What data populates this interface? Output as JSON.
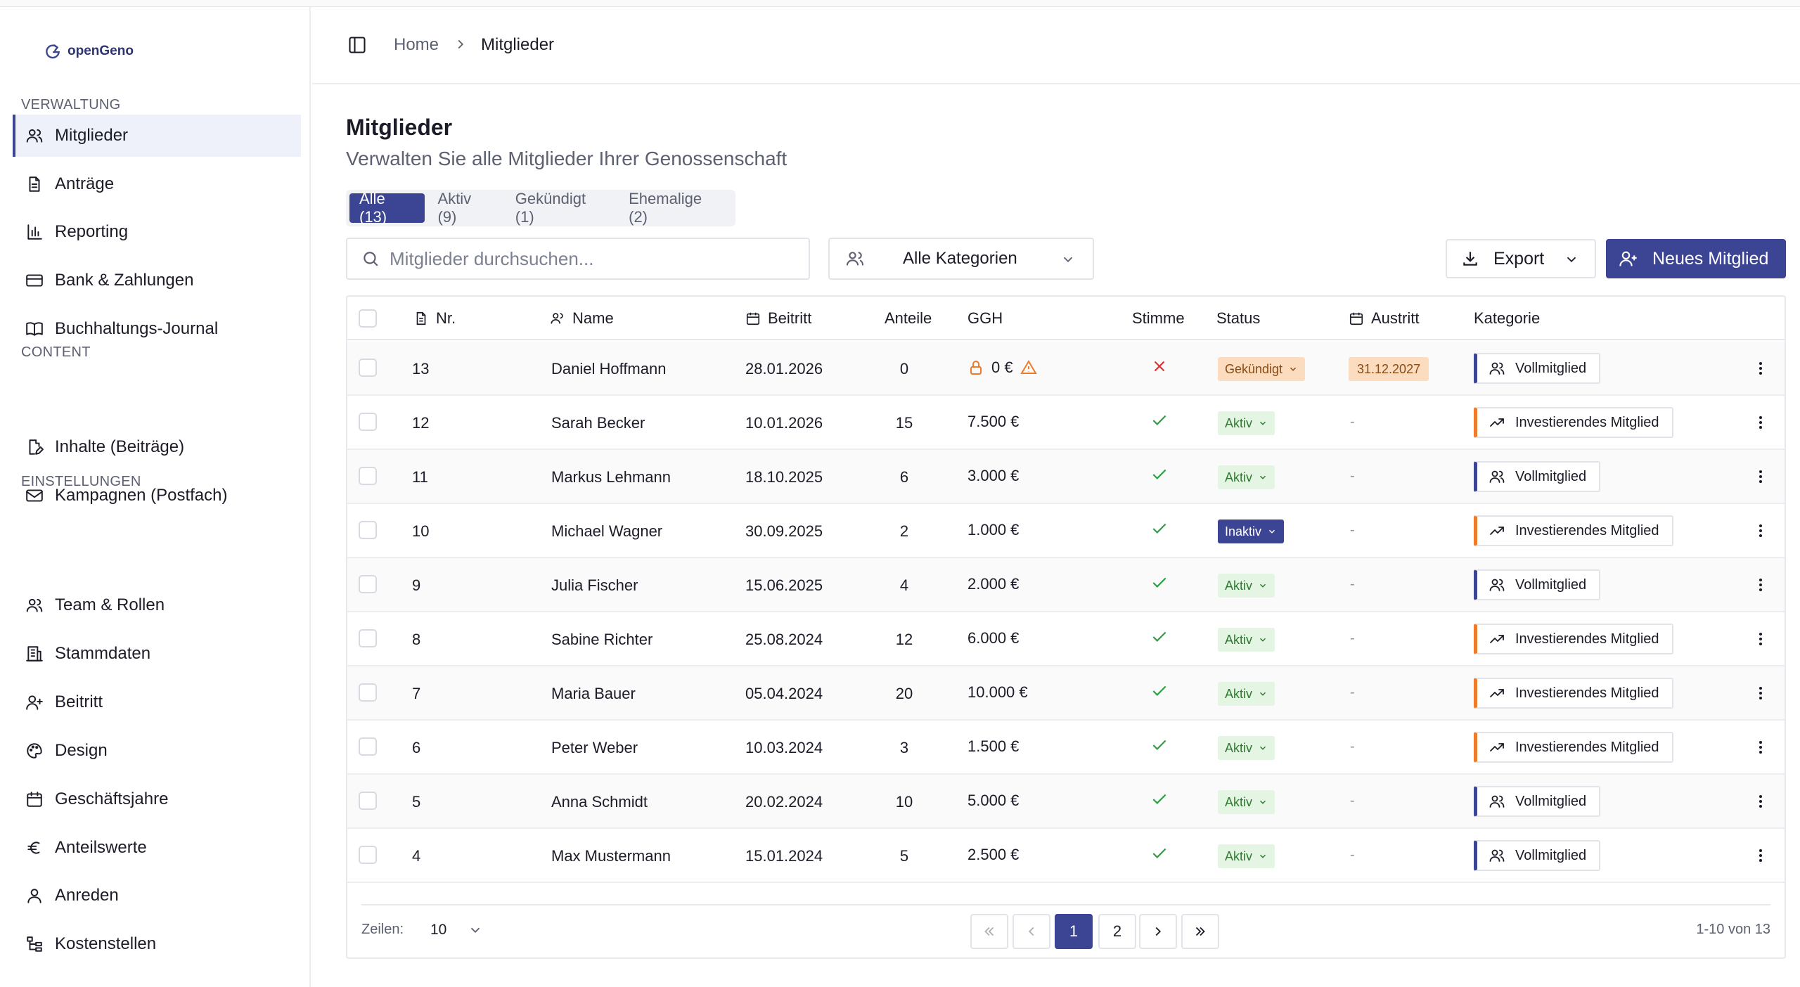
{
  "app": {
    "brand": "openGeno"
  },
  "sidebar": {
    "sections": [
      {
        "title": "VERWALTUNG"
      },
      {
        "title": "CONTENT"
      },
      {
        "title": "EINSTELLUNGEN"
      }
    ],
    "items": [
      {
        "label": "Mitglieder",
        "icon": "users-icon",
        "active": true
      },
      {
        "label": "Anträge",
        "icon": "document-icon"
      },
      {
        "label": "Reporting",
        "icon": "bar-chart-icon"
      },
      {
        "label": "Bank & Zahlungen",
        "icon": "credit-card-icon"
      },
      {
        "label": "Buchhaltungs-Journal",
        "icon": "book-icon"
      },
      {
        "label": "Inhalte (Beiträge)",
        "icon": "file-edit-icon"
      },
      {
        "label": "Kampagnen (Postfach)",
        "icon": "mail-icon"
      },
      {
        "label": "Team & Rollen",
        "icon": "users-icon"
      },
      {
        "label": "Stammdaten",
        "icon": "building-icon"
      },
      {
        "label": "Beitritt",
        "icon": "user-plus-icon"
      },
      {
        "label": "Design",
        "icon": "palette-icon"
      },
      {
        "label": "Geschäftsjahre",
        "icon": "calendar-icon"
      },
      {
        "label": "Anteilswerte",
        "icon": "euro-icon"
      },
      {
        "label": "Anreden",
        "icon": "user-icon"
      },
      {
        "label": "Kostenstellen",
        "icon": "hierarchy-icon"
      }
    ]
  },
  "header": {
    "breadcrumb": {
      "home": "Home",
      "current": "Mitglieder"
    }
  },
  "page": {
    "title": "Mitglieder",
    "subtitle": "Verwalten Sie alle Mitglieder Ihrer Genossenschaft"
  },
  "tabs": [
    {
      "label": "Alle (13)",
      "active": true
    },
    {
      "label": "Aktiv (9)"
    },
    {
      "label": "Gekündigt (1)"
    },
    {
      "label": "Ehemalige (2)"
    }
  ],
  "toolbar": {
    "search_placeholder": "Mitglieder durchsuchen...",
    "category_value": "Alle Kategorien",
    "export_label": "Export",
    "new_label": "Neues Mitglied"
  },
  "table": {
    "headers": {
      "nr": "Nr.",
      "name": "Name",
      "beitritt": "Beitritt",
      "anteile": "Anteile",
      "ggh": "GGH",
      "stimme": "Stimme",
      "status": "Status",
      "austritt": "Austritt",
      "kategorie": "Kategorie"
    },
    "rows": [
      {
        "nr": "13",
        "name": "Daniel Hoffmann",
        "beitritt": "28.01.2026",
        "anteile": "0",
        "ggh": "0 €",
        "ggh_locked": true,
        "ggh_warning": true,
        "stimme": false,
        "status": "Gekündigt",
        "status_type": "gekuendigt",
        "austritt": "31.12.2027",
        "kategorie": "Vollmitglied",
        "kat_type": "voll"
      },
      {
        "nr": "12",
        "name": "Sarah Becker",
        "beitritt": "10.01.2026",
        "anteile": "15",
        "ggh": "7.500 €",
        "stimme": true,
        "status": "Aktiv",
        "status_type": "aktiv",
        "austritt": "-",
        "kategorie": "Investierendes Mitglied",
        "kat_type": "inv"
      },
      {
        "nr": "11",
        "name": "Markus Lehmann",
        "beitritt": "18.10.2025",
        "anteile": "6",
        "ggh": "3.000 €",
        "stimme": true,
        "status": "Aktiv",
        "status_type": "aktiv",
        "austritt": "-",
        "kategorie": "Vollmitglied",
        "kat_type": "voll"
      },
      {
        "nr": "10",
        "name": "Michael Wagner",
        "beitritt": "30.09.2025",
        "anteile": "2",
        "ggh": "1.000 €",
        "stimme": true,
        "status": "Inaktiv",
        "status_type": "inaktiv",
        "austritt": "-",
        "kategorie": "Investierendes Mitglied",
        "kat_type": "inv"
      },
      {
        "nr": "9",
        "name": "Julia Fischer",
        "beitritt": "15.06.2025",
        "anteile": "4",
        "ggh": "2.000 €",
        "stimme": true,
        "status": "Aktiv",
        "status_type": "aktiv",
        "austritt": "-",
        "kategorie": "Vollmitglied",
        "kat_type": "voll"
      },
      {
        "nr": "8",
        "name": "Sabine Richter",
        "beitritt": "25.08.2024",
        "anteile": "12",
        "ggh": "6.000 €",
        "stimme": true,
        "status": "Aktiv",
        "status_type": "aktiv",
        "austritt": "-",
        "kategorie": "Investierendes Mitglied",
        "kat_type": "inv"
      },
      {
        "nr": "7",
        "name": "Maria Bauer",
        "beitritt": "05.04.2024",
        "anteile": "20",
        "ggh": "10.000 €",
        "stimme": true,
        "status": "Aktiv",
        "status_type": "aktiv",
        "austritt": "-",
        "kategorie": "Investierendes Mitglied",
        "kat_type": "inv"
      },
      {
        "nr": "6",
        "name": "Peter Weber",
        "beitritt": "10.03.2024",
        "anteile": "3",
        "ggh": "1.500 €",
        "stimme": true,
        "status": "Aktiv",
        "status_type": "aktiv",
        "austritt": "-",
        "kategorie": "Investierendes Mitglied",
        "kat_type": "inv"
      },
      {
        "nr": "5",
        "name": "Anna Schmidt",
        "beitritt": "20.02.2024",
        "anteile": "10",
        "ggh": "5.000 €",
        "stimme": true,
        "status": "Aktiv",
        "status_type": "aktiv",
        "austritt": "-",
        "kategorie": "Vollmitglied",
        "kat_type": "voll"
      },
      {
        "nr": "4",
        "name": "Max Mustermann",
        "beitritt": "15.01.2024",
        "anteile": "5",
        "ggh": "2.500 €",
        "stimme": true,
        "status": "Aktiv",
        "status_type": "aktiv",
        "austritt": "-",
        "kategorie": "Vollmitglied",
        "kat_type": "voll"
      }
    ]
  },
  "pagination": {
    "rows_label": "Zeilen:",
    "rows_value": "10",
    "pages": [
      "1",
      "2"
    ],
    "current_page": "1",
    "range_text": "1-10 von 13"
  },
  "colors": {
    "accent": "#3c4494",
    "invest": "#ee7a2a",
    "aktiv_bg": "#e4f5e4",
    "gekuendigt_bg": "#fbdcbe",
    "check": "#2f9e44",
    "cross": "#e03131"
  }
}
